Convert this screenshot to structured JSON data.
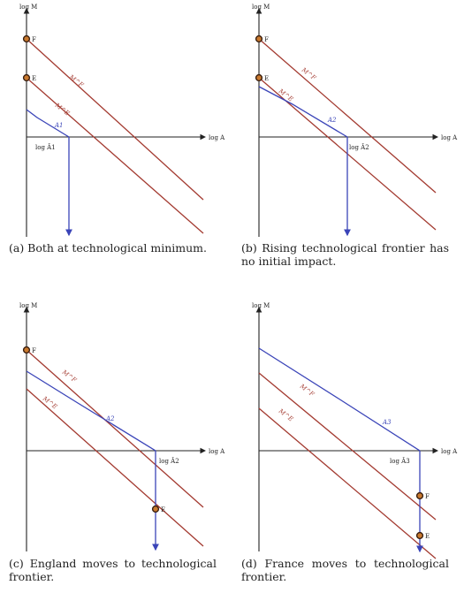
{
  "axis_labels": {
    "y": "log M",
    "x": "log A"
  },
  "curve_labels": {
    "mf": "M^F",
    "me": "M^E"
  },
  "colors": {
    "red": "#a33a30",
    "blue": "#3a44b8",
    "point": "#c9792e"
  },
  "panels": [
    {
      "id": "a",
      "caption": "(a) Both at technological minimum.",
      "blue_label": "A1",
      "threshold_label": "log Â1",
      "points": [
        "F",
        "E"
      ]
    },
    {
      "id": "b",
      "caption": "(b) Rising technological frontier has no initial impact.",
      "blue_label": "A2",
      "threshold_label": "log Â2",
      "points": [
        "F",
        "E"
      ]
    },
    {
      "id": "c",
      "caption": "(c) England moves to technological frontier.",
      "blue_label": "A2",
      "threshold_label": "log Â2",
      "points": [
        "F",
        "E"
      ]
    },
    {
      "id": "d",
      "caption": "(d) France moves to technological frontier.",
      "blue_label": "A3",
      "threshold_label": "log Â3",
      "points": [
        "F",
        "E"
      ]
    }
  ]
}
